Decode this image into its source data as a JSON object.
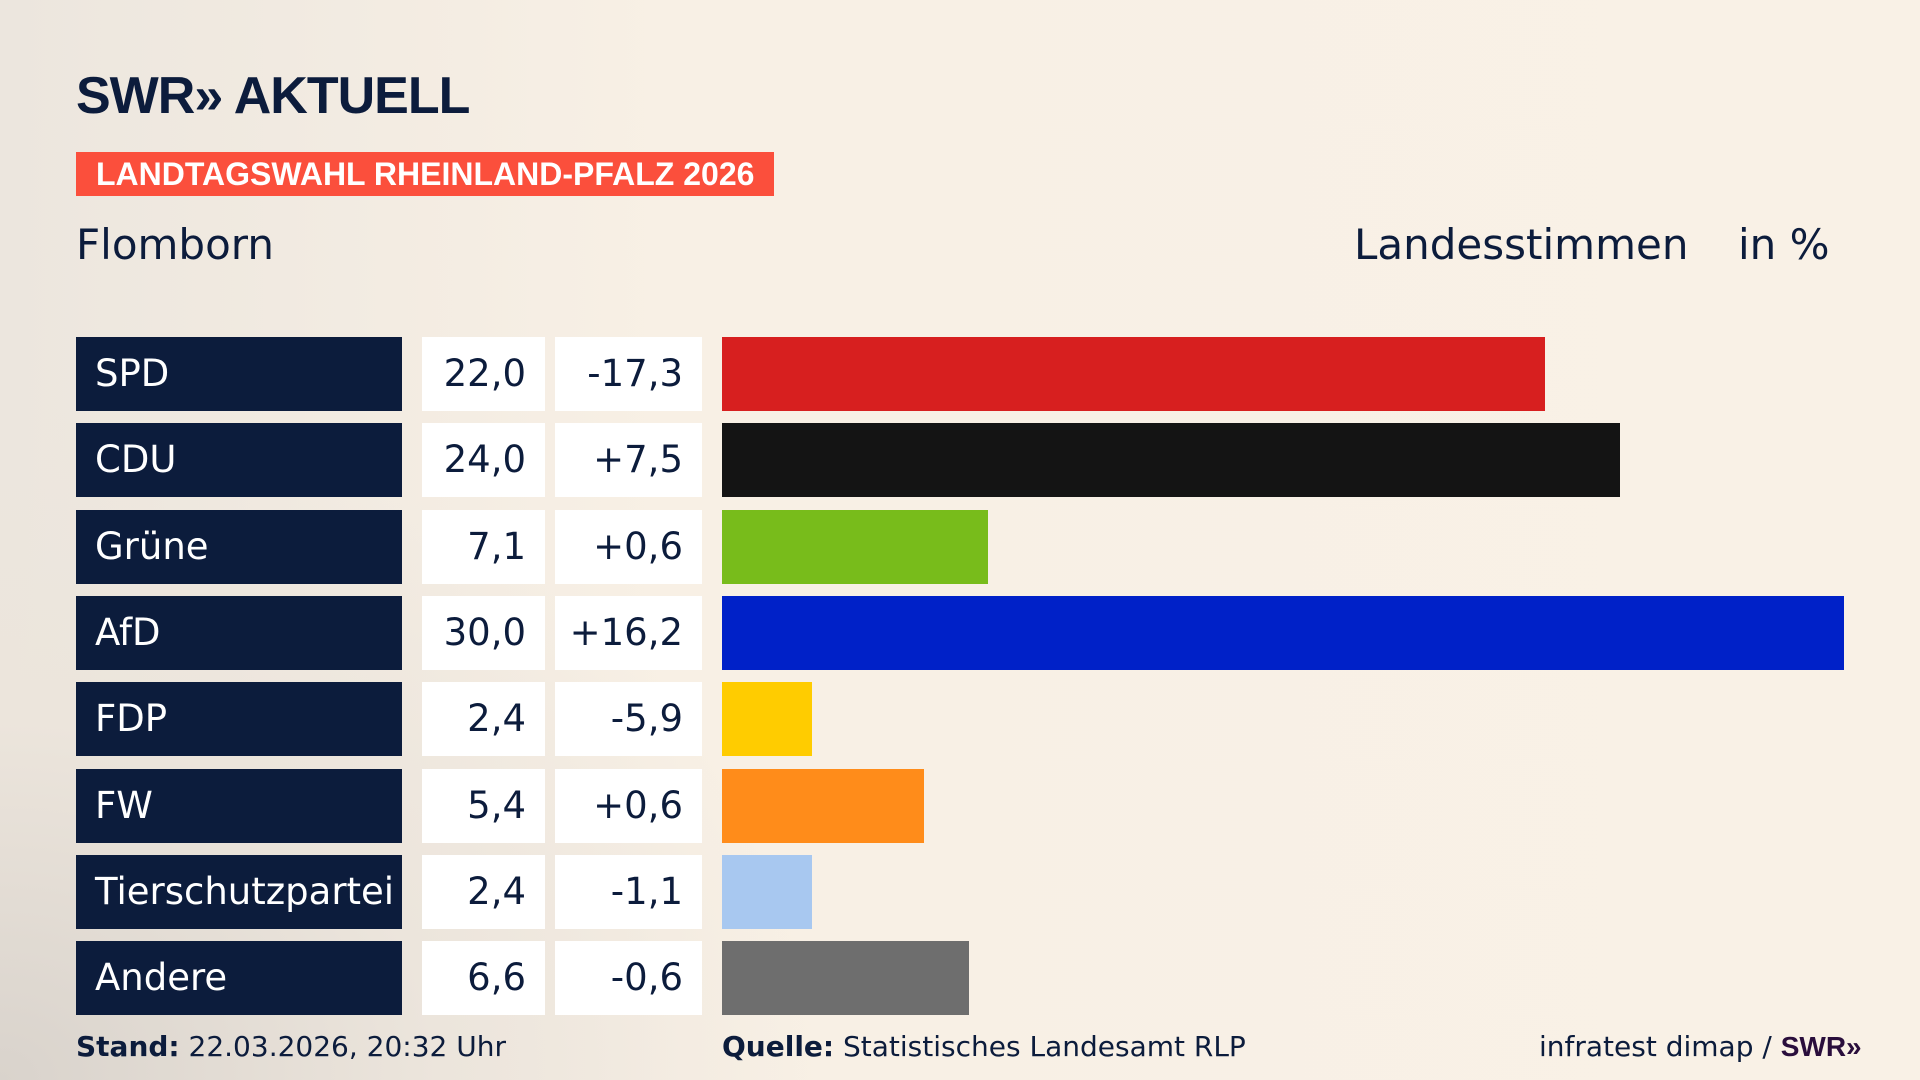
{
  "header": {
    "logo": "SWR» AKTUELL",
    "banner": "LANDTAGSWAHL RHEINLAND-PFALZ 2026",
    "place": "Flomborn",
    "measure": "Landesstimmen",
    "unit": "in %"
  },
  "chart_data": {
    "type": "bar",
    "orientation": "horizontal",
    "title": "Landesstimmen",
    "ylabel": "in %",
    "xlim": [
      0,
      30
    ],
    "categories": [
      "SPD",
      "CDU",
      "Grüne",
      "AfD",
      "FDP",
      "FW",
      "Tierschutzpartei",
      "Andere"
    ],
    "values": [
      22.0,
      24.0,
      7.1,
      30.0,
      2.4,
      5.4,
      2.4,
      6.6
    ],
    "value_labels": [
      "22,0",
      "24,0",
      "7,1",
      "30,0",
      "2,4",
      "5,4",
      "2,4",
      "6,6"
    ],
    "diff_labels": [
      "-17,3",
      "+7,5",
      "+0,6",
      "+16,2",
      "-5,9",
      "+0,6",
      "-1,1",
      "-0,6"
    ],
    "colors": [
      "#d71f1f",
      "#141414",
      "#78bc1b",
      "#0021c8",
      "#ffcc00",
      "#ff8c1a",
      "#a8c8f0",
      "#6e6e6e"
    ]
  },
  "footer": {
    "stand_label": "Stand:",
    "stand_value": "22.03.2026, 20:32 Uhr",
    "source_label": "Quelle:",
    "source_value": "Statistisches Landesamt RLP",
    "credit": "infratest dimap /",
    "credit_logo": "SWR»"
  }
}
